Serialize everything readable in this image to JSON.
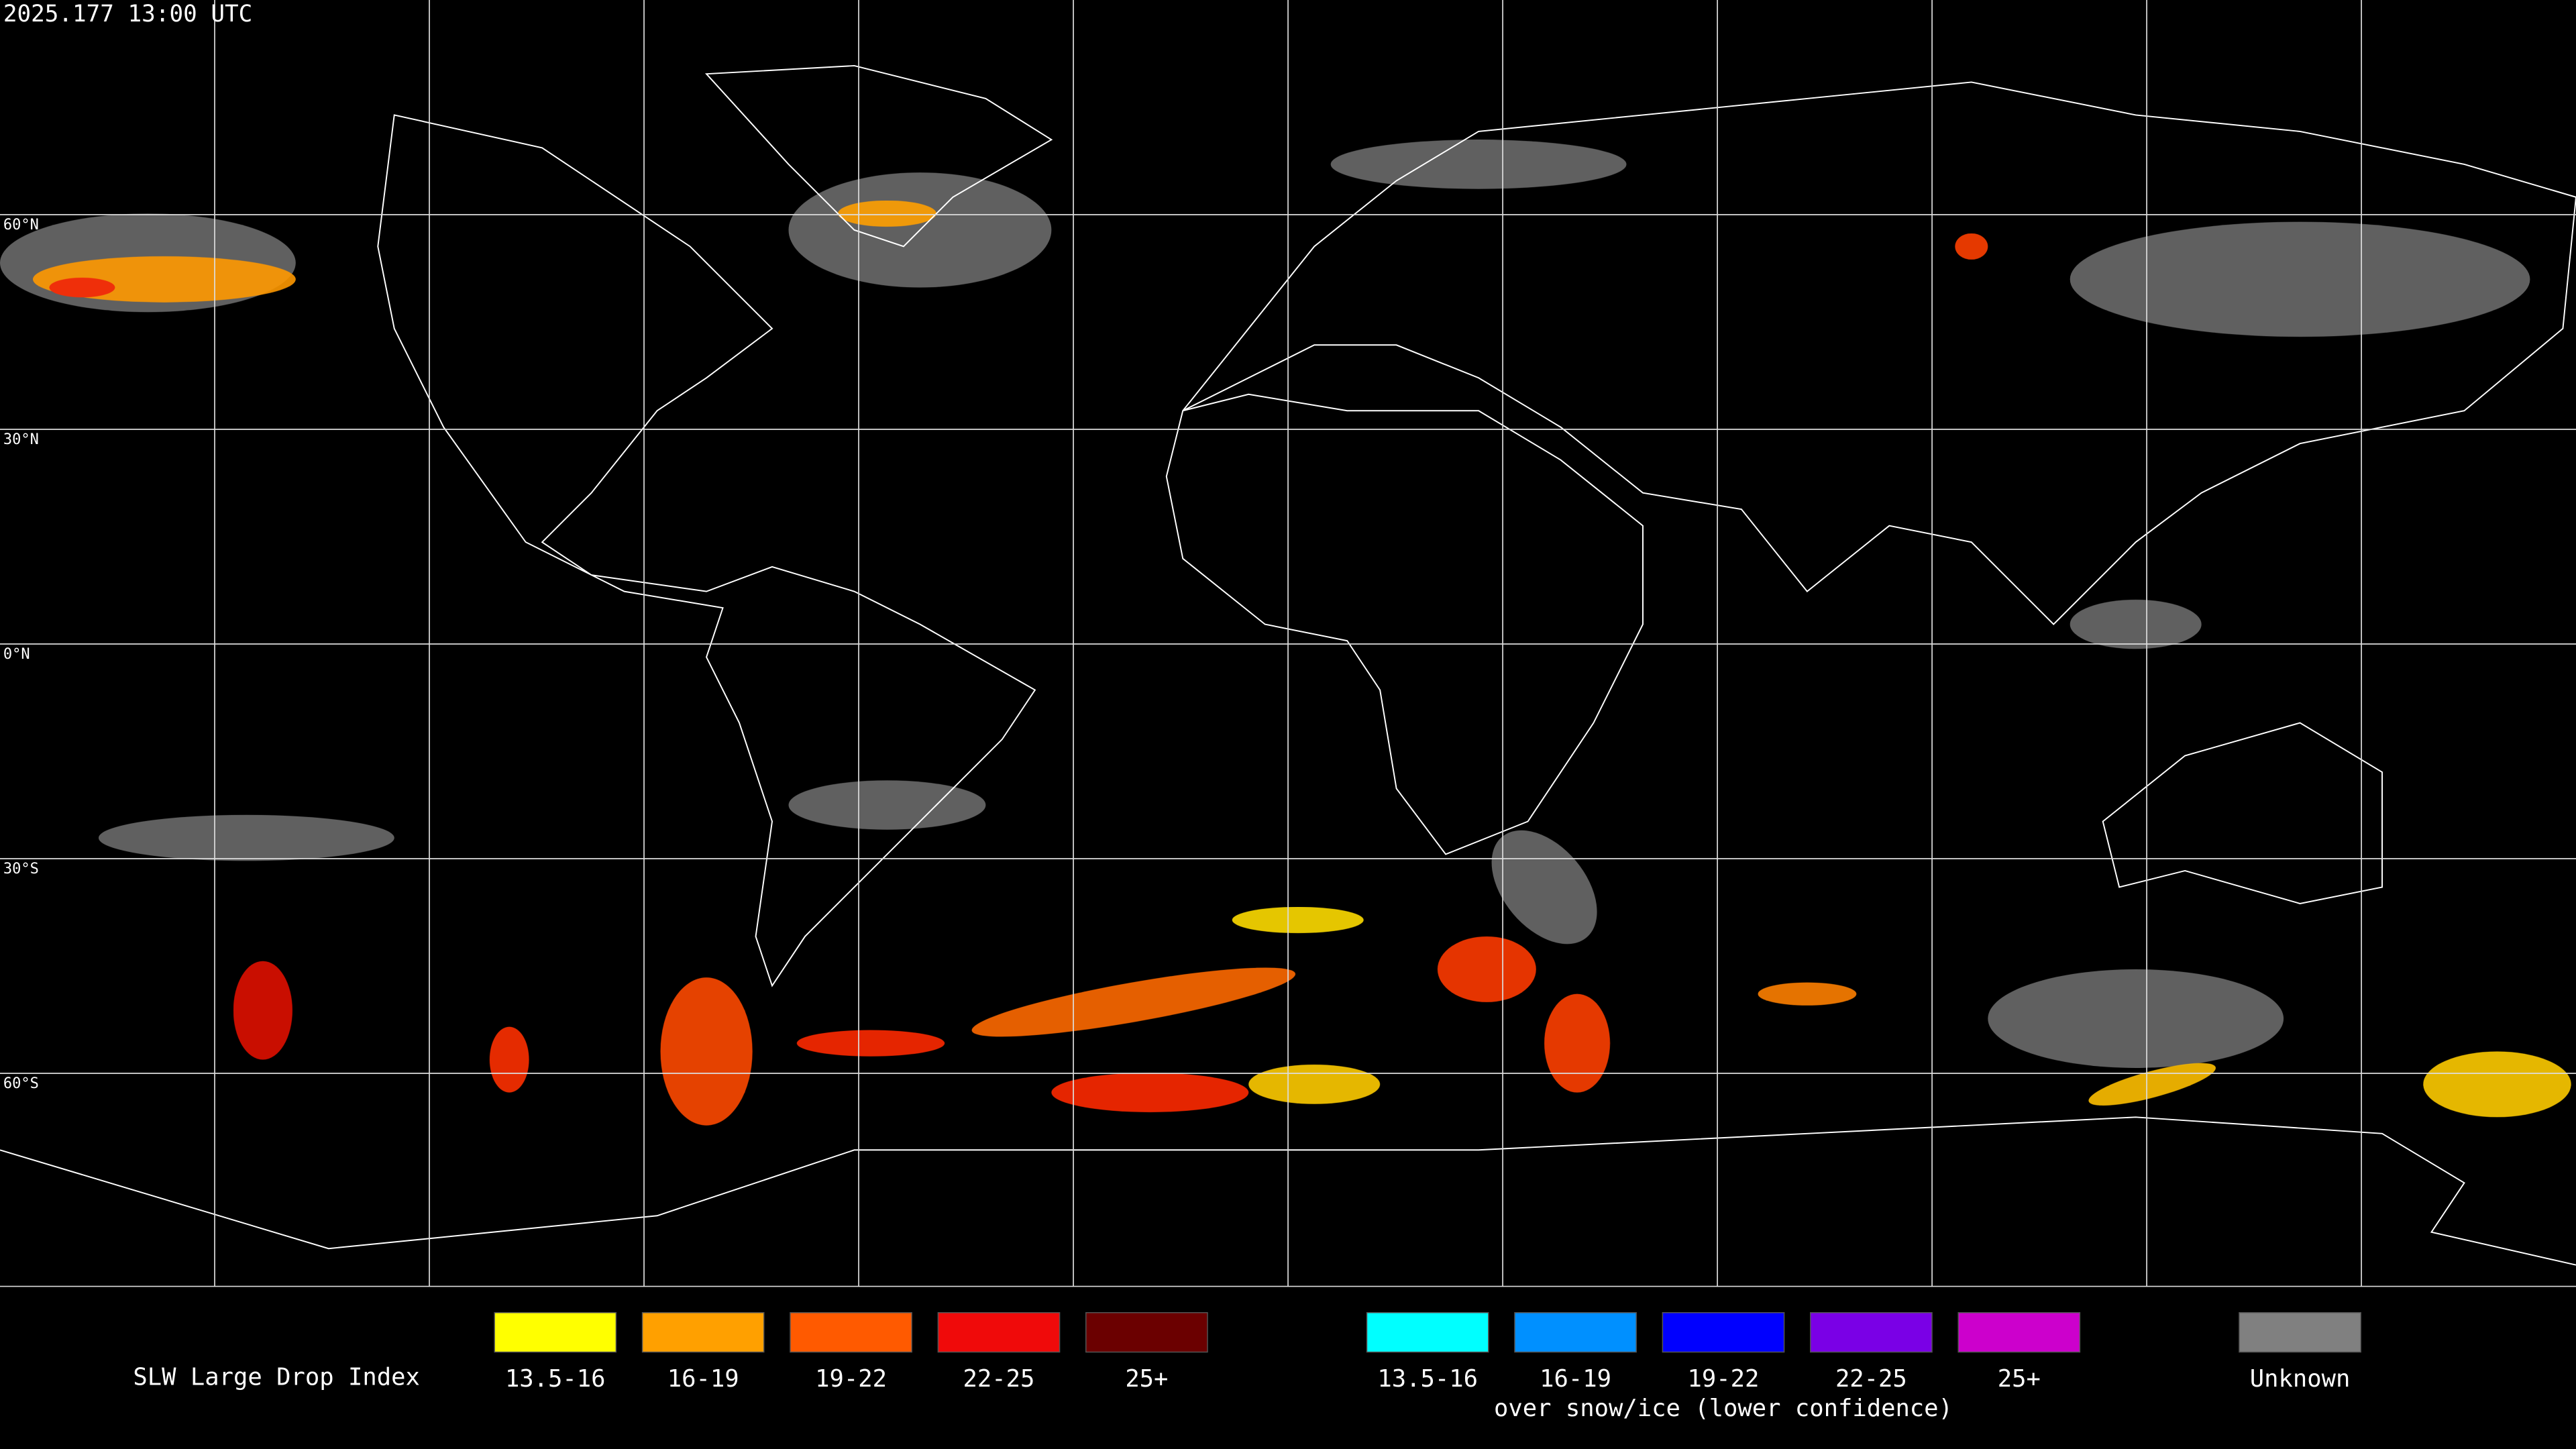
{
  "header": {
    "timestamp": "2025.177 13:00 UTC"
  },
  "map": {
    "latitude_labels": [
      "60°N",
      "30°N",
      "0°N",
      "30°S",
      "60°S"
    ]
  },
  "legend": {
    "title": "SLW Large Drop Index",
    "groups": [
      {
        "items": [
          {
            "label": "13.5-16",
            "color": "#ffff00"
          },
          {
            "label": "16-19",
            "color": "#ffa000"
          },
          {
            "label": "19-22",
            "color": "#ff5a00"
          },
          {
            "label": "22-25",
            "color": "#f00a0a"
          },
          {
            "label": "25+",
            "color": "#6b0000"
          }
        ]
      },
      {
        "caption": "over snow/ice (lower confidence)",
        "items": [
          {
            "label": "13.5-16",
            "color": "#00ffff"
          },
          {
            "label": "16-19",
            "color": "#0090ff"
          },
          {
            "label": "19-22",
            "color": "#0000ff"
          },
          {
            "label": "22-25",
            "color": "#7a00e6"
          },
          {
            "label": "25+",
            "color": "#cc00cc"
          }
        ]
      },
      {
        "items": [
          {
            "label": "Unknown",
            "color": "#808080"
          }
        ]
      }
    ]
  }
}
